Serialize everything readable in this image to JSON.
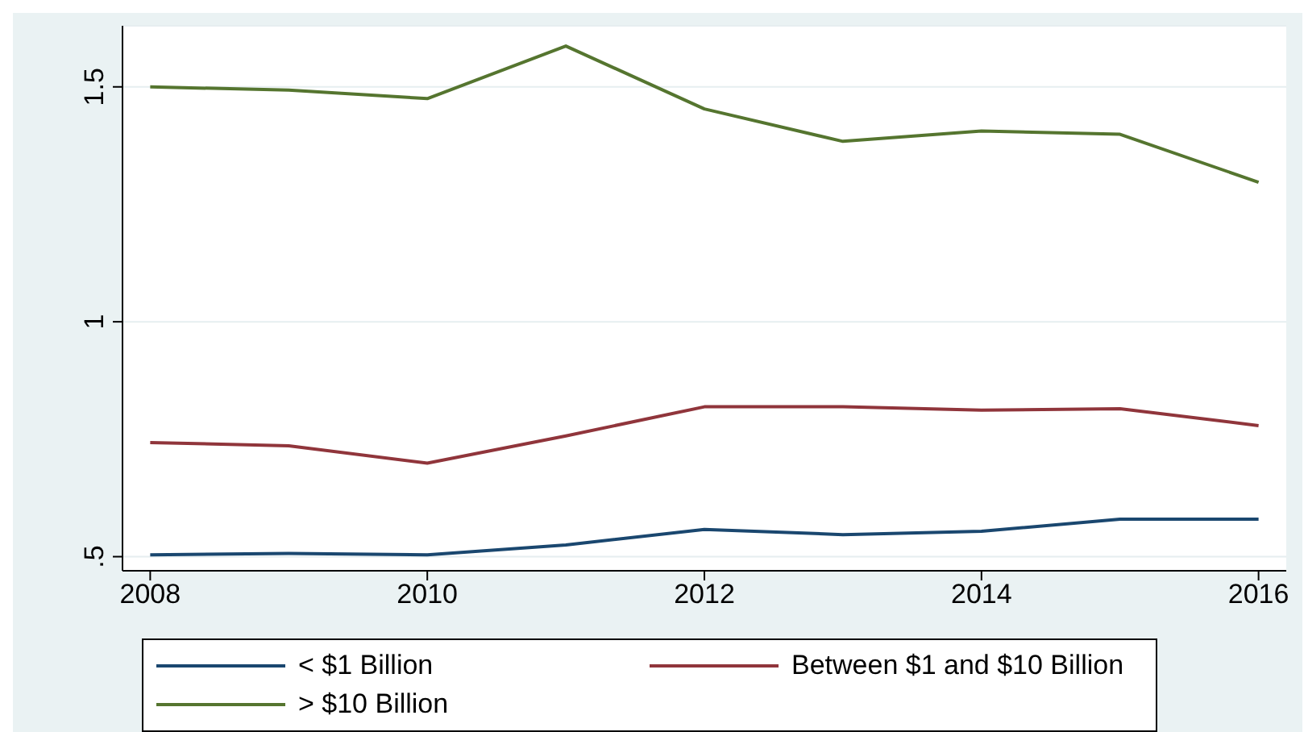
{
  "chart_data": {
    "type": "line",
    "x": [
      2008,
      2009,
      2010,
      2011,
      2012,
      2013,
      2014,
      2015,
      2016
    ],
    "series": [
      {
        "name": "< $1 Billion",
        "color": "#1a476f",
        "values": [
          0.504,
          0.507,
          0.504,
          0.525,
          0.558,
          0.547,
          0.554,
          0.58,
          0.58
        ]
      },
      {
        "name": "Between $1 and $10 Billion",
        "color": "#90353b",
        "values": [
          0.743,
          0.736,
          0.699,
          0.757,
          0.819,
          0.819,
          0.812,
          0.815,
          0.779
        ]
      },
      {
        "name": "> $10 Billion",
        "color": "#55752f",
        "values": [
          1.5,
          1.493,
          1.475,
          1.587,
          1.453,
          1.384,
          1.406,
          1.399,
          1.297
        ]
      }
    ],
    "xlim": [
      2007.8,
      2016.2
    ],
    "xticks": [
      2008,
      2010,
      2012,
      2014,
      2016
    ],
    "ylim": [
      0.47,
      1.63
    ],
    "yticks": [
      {
        "value": 0.5,
        "label": ".5"
      },
      1,
      1.5
    ],
    "grid": "y",
    "legend": "bottom",
    "marker": "none",
    "line_style": "solid"
  }
}
